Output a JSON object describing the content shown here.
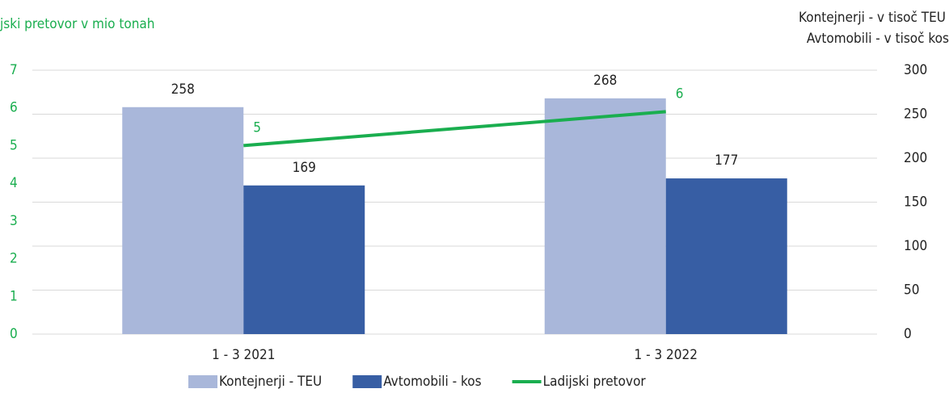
{
  "chart_data": {
    "type": "bar-line",
    "title": "jski pretovor v mio tonah",
    "y2_title": [
      "Kontejnerji - v tisoč TEU",
      "Avtomobili - v tisoč kos"
    ],
    "categories": [
      "1 - 3 2021",
      "1 - 3 2022"
    ],
    "series": [
      {
        "name": "Kontejnerji - TEU",
        "type": "bar",
        "axis": "y2",
        "color": "#a9b7da",
        "values": [
          258,
          268
        ]
      },
      {
        "name": "Avtomobili - kos",
        "type": "bar",
        "axis": "y2",
        "color": "#375ea4",
        "values": [
          169,
          177
        ]
      },
      {
        "name": "Ladijski pretovor",
        "type": "line",
        "axis": "y",
        "color": "#1aae4f",
        "values": [
          5.0,
          5.9
        ],
        "value_labels": [
          "5",
          "6"
        ]
      }
    ],
    "ylim": [
      0,
      7
    ],
    "yticks": [
      0,
      1,
      2,
      3,
      4,
      5,
      6,
      7
    ],
    "y2lim": [
      0,
      300
    ],
    "y2ticks": [
      0,
      50,
      100,
      150,
      200,
      250,
      300
    ],
    "grid": true,
    "legend": "bottom"
  }
}
